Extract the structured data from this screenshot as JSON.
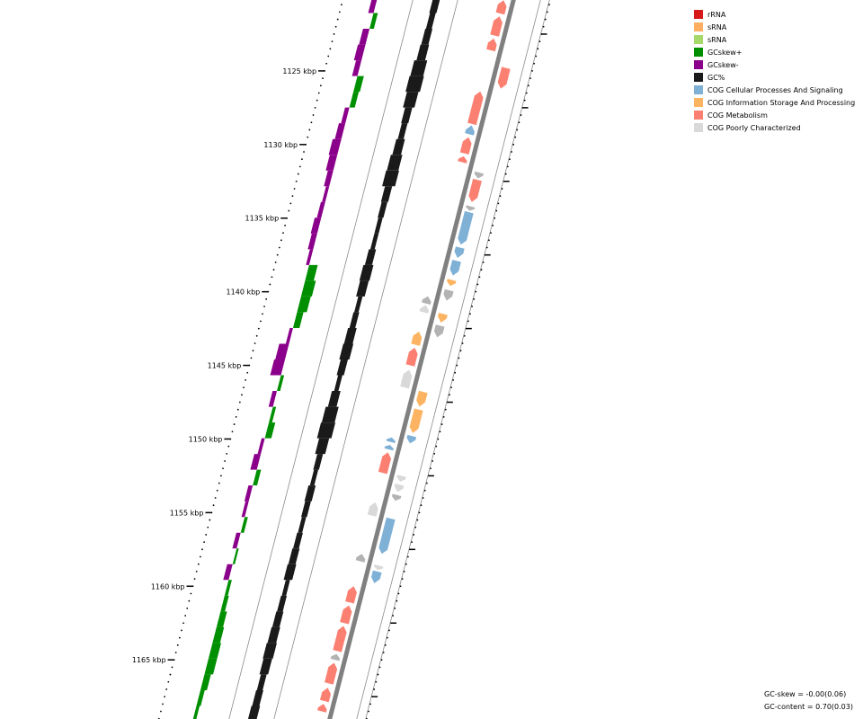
{
  "axis": {
    "unit": "kbp",
    "ticks": [
      {
        "pos": 1125,
        "label": "1125 kbp"
      },
      {
        "pos": 1130,
        "label": "1130 kbp"
      },
      {
        "pos": 1135,
        "label": "1135 kbp"
      },
      {
        "pos": 1140,
        "label": "1140 kbp"
      },
      {
        "pos": 1145,
        "label": "1145 kbp"
      },
      {
        "pos": 1150,
        "label": "1150 kbp"
      },
      {
        "pos": 1155,
        "label": "1155 kbp"
      },
      {
        "pos": 1160,
        "label": "1160 kbp"
      },
      {
        "pos": 1165,
        "label": "1165 kbp"
      }
    ]
  },
  "legend": {
    "items": [
      {
        "label": "rRNA",
        "color": "#d7191c"
      },
      {
        "label": "sRNA",
        "color": "#fdae61"
      },
      {
        "label": "sRNA",
        "color": "#a6d96a"
      },
      {
        "label": "GCskew+",
        "color": "#008f00"
      },
      {
        "label": "GCskew-",
        "color": "#8b008b"
      },
      {
        "label": "GC%",
        "color": "#1a1a1a"
      },
      {
        "label": "COG Cellular Processes And Signaling",
        "color": "#7fb0d6"
      },
      {
        "label": "COG Information Storage And Processing",
        "color": "#fdb462"
      },
      {
        "label": "COG Metabolism",
        "color": "#fb8072"
      },
      {
        "label": "COG Poorly Characterized",
        "color": "#d9d9d9"
      }
    ]
  },
  "stats": {
    "gc_skew": "GC-skew = -0.00(0.06)",
    "gc_content": "GC-content = 0.70(0.03)"
  },
  "colors": {
    "gcskew_pos": "#008f00",
    "gcskew_neg": "#8b008b",
    "gc_percent": "#1a1a1a",
    "backbone": "#808080",
    "cog_cellular": "#7fb0d6",
    "cog_information": "#fdb462",
    "cog_metabolism": "#fb8072",
    "cog_poorly": "#d9d9d9",
    "cog_unknown": "#b3b3b3"
  },
  "tracks": {
    "gc_skew": [
      -0.5,
      0.4,
      -0.6,
      -0.7,
      -0.5,
      0.6,
      0.5,
      -0.4,
      -0.6,
      -0.8,
      -0.7,
      -0.5,
      -0.3,
      -0.4,
      -0.6,
      -0.5,
      -0.3,
      0.8,
      1.0,
      0.9,
      0.6,
      -0.3,
      -0.9,
      -1.0,
      0.3,
      -0.4,
      0.3,
      0.6,
      -0.3,
      -0.6,
      0.4,
      -0.4,
      -0.3,
      0.3,
      -0.4,
      0.2,
      -0.5,
      0.3,
      0.4,
      0.6,
      0.7,
      0.8,
      0.8,
      0.6,
      0.4,
      0.3
    ],
    "gc_percent": [
      0.5,
      0.4,
      0.5,
      0.6,
      0.9,
      1.0,
      0.8,
      0.5,
      0.4,
      0.6,
      0.8,
      0.9,
      0.5,
      0.4,
      0.3,
      0.3,
      0.5,
      0.7,
      0.6,
      0.3,
      0.4,
      0.6,
      0.7,
      0.5,
      0.3,
      0.6,
      0.9,
      1.0,
      0.7,
      0.4,
      0.3,
      0.5,
      0.4,
      0.3,
      0.4,
      0.5,
      0.6,
      0.3,
      0.4,
      0.5,
      0.6,
      0.7,
      0.6,
      0.4,
      0.5,
      0.6
    ],
    "genes": [
      {
        "start": 1120.2,
        "end": 1121.1,
        "strand": 1,
        "cog": "metabolism"
      },
      {
        "start": 1121.3,
        "end": 1122.6,
        "strand": 1,
        "cog": "metabolism"
      },
      {
        "start": 1122.8,
        "end": 1123.6,
        "strand": 1,
        "cog": "metabolism"
      },
      {
        "start": 1124.8,
        "end": 1126.2,
        "strand": -1,
        "cog": "metabolism"
      },
      {
        "start": 1126.4,
        "end": 1128.6,
        "strand": 1,
        "cog": "metabolism"
      },
      {
        "start": 1128.7,
        "end": 1129.3,
        "strand": 1,
        "cog": "cellular"
      },
      {
        "start": 1129.5,
        "end": 1130.6,
        "strand": 1,
        "cog": "metabolism"
      },
      {
        "start": 1130.8,
        "end": 1131.2,
        "strand": 1,
        "cog": "metabolism"
      },
      {
        "start": 1131.9,
        "end": 1132.3,
        "strand": -1,
        "cog": "unknown"
      },
      {
        "start": 1132.4,
        "end": 1133.9,
        "strand": -1,
        "cog": "metabolism"
      },
      {
        "start": 1134.2,
        "end": 1134.5,
        "strand": -1,
        "cog": "unknown"
      },
      {
        "start": 1134.6,
        "end": 1136.8,
        "strand": -1,
        "cog": "cellular"
      },
      {
        "start": 1137.0,
        "end": 1137.7,
        "strand": -1,
        "cog": "cellular"
      },
      {
        "start": 1137.9,
        "end": 1138.9,
        "strand": -1,
        "cog": "cellular"
      },
      {
        "start": 1139.2,
        "end": 1139.6,
        "strand": -1,
        "cog": "information"
      },
      {
        "start": 1139.9,
        "end": 1140.6,
        "strand": -1,
        "cog": "unknown"
      },
      {
        "start": 1140.3,
        "end": 1140.8,
        "strand": 1,
        "cog": "unknown"
      },
      {
        "start": 1140.9,
        "end": 1141.4,
        "strand": 1,
        "cog": "poorly"
      },
      {
        "start": 1141.5,
        "end": 1142.1,
        "strand": -1,
        "cog": "information"
      },
      {
        "start": 1142.3,
        "end": 1143.1,
        "strand": -1,
        "cog": "unknown"
      },
      {
        "start": 1142.7,
        "end": 1143.6,
        "strand": 1,
        "cog": "information"
      },
      {
        "start": 1143.8,
        "end": 1145.0,
        "strand": 1,
        "cog": "metabolism"
      },
      {
        "start": 1145.3,
        "end": 1146.5,
        "strand": 1,
        "cog": "poorly"
      },
      {
        "start": 1146.8,
        "end": 1147.8,
        "strand": -1,
        "cog": "information"
      },
      {
        "start": 1148.0,
        "end": 1149.6,
        "strand": -1,
        "cog": "information"
      },
      {
        "start": 1149.8,
        "end": 1150.3,
        "strand": -1,
        "cog": "cellular"
      },
      {
        "start": 1149.9,
        "end": 1150.2,
        "strand": 1,
        "cog": "cellular"
      },
      {
        "start": 1150.4,
        "end": 1150.7,
        "strand": 1,
        "cog": "cellular"
      },
      {
        "start": 1150.9,
        "end": 1152.3,
        "strand": 1,
        "cog": "metabolism"
      },
      {
        "start": 1152.5,
        "end": 1152.9,
        "strand": -1,
        "cog": "poorly"
      },
      {
        "start": 1153.1,
        "end": 1153.6,
        "strand": -1,
        "cog": "poorly"
      },
      {
        "start": 1153.8,
        "end": 1154.2,
        "strand": -1,
        "cog": "unknown"
      },
      {
        "start": 1154.3,
        "end": 1155.2,
        "strand": 1,
        "cog": "poorly"
      },
      {
        "start": 1155.4,
        "end": 1157.8,
        "strand": -1,
        "cog": "cellular"
      },
      {
        "start": 1157.8,
        "end": 1158.3,
        "strand": 1,
        "cog": "unknown"
      },
      {
        "start": 1158.6,
        "end": 1158.9,
        "strand": -1,
        "cog": "poorly"
      },
      {
        "start": 1159.0,
        "end": 1159.8,
        "strand": -1,
        "cog": "cellular"
      },
      {
        "start": 1160.0,
        "end": 1161.1,
        "strand": 1,
        "cog": "metabolism"
      },
      {
        "start": 1161.3,
        "end": 1162.5,
        "strand": 1,
        "cog": "metabolism"
      },
      {
        "start": 1162.7,
        "end": 1164.4,
        "strand": 1,
        "cog": "metabolism"
      },
      {
        "start": 1164.6,
        "end": 1165.0,
        "strand": 1,
        "cog": "unknown"
      },
      {
        "start": 1165.2,
        "end": 1166.6,
        "strand": 1,
        "cog": "metabolism"
      },
      {
        "start": 1166.9,
        "end": 1167.8,
        "strand": 1,
        "cog": "metabolism"
      },
      {
        "start": 1168.0,
        "end": 1168.5,
        "strand": 1,
        "cog": "metabolism"
      }
    ]
  }
}
